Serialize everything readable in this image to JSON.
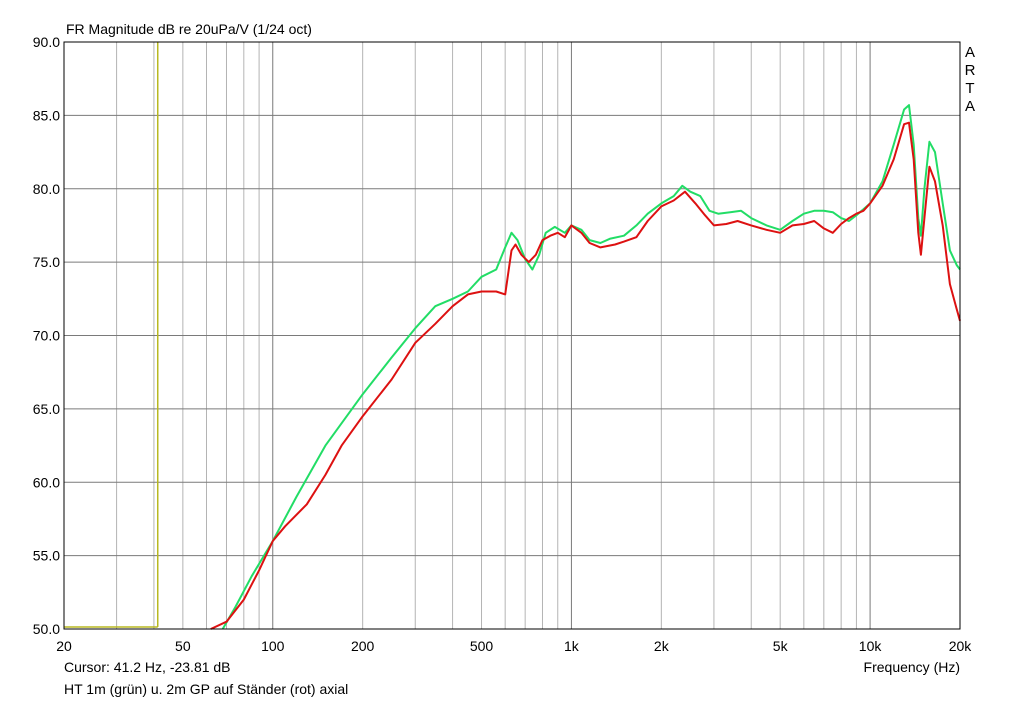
{
  "chart_data": {
    "type": "line",
    "title": "FR Magnitude dB re 20uPa/V (1/24 oct)",
    "xlabel": "Frequency (Hz)",
    "ylabel": "",
    "x_scale": "log",
    "xlim": [
      20,
      20000
    ],
    "ylim": [
      50,
      90
    ],
    "grid": true,
    "x_tick_labels": [
      {
        "value": 20,
        "label": "20"
      },
      {
        "value": 50,
        "label": "50"
      },
      {
        "value": 100,
        "label": "100"
      },
      {
        "value": 200,
        "label": "200"
      },
      {
        "value": 500,
        "label": "500"
      },
      {
        "value": 1000,
        "label": "1k"
      },
      {
        "value": 2000,
        "label": "2k"
      },
      {
        "value": 5000,
        "label": "5k"
      },
      {
        "value": 10000,
        "label": "10k"
      },
      {
        "value": 20000,
        "label": "20k"
      }
    ],
    "y_ticks": [
      "50.0",
      "55.0",
      "60.0",
      "65.0",
      "70.0",
      "75.0",
      "80.0",
      "85.0",
      "90.0"
    ],
    "cursor_frequency_hz": 41.2,
    "cursor_color": "#b8b820",
    "cursor_readout": "Cursor: 41.2 Hz, -23.81 dB",
    "caption": "HT 1m (grün) u. 2m GP auf Ständer (rot) axial",
    "watermark": "ARTA",
    "series": [
      {
        "color": "#22dd66",
        "points": [
          [
            68,
            50.0
          ],
          [
            75,
            51.5
          ],
          [
            85,
            53.6
          ],
          [
            100,
            56.0
          ],
          [
            120,
            59.0
          ],
          [
            150,
            62.5
          ],
          [
            200,
            66.0
          ],
          [
            250,
            68.5
          ],
          [
            300,
            70.5
          ],
          [
            350,
            72.0
          ],
          [
            400,
            72.5
          ],
          [
            450,
            73.0
          ],
          [
            500,
            74.0
          ],
          [
            560,
            74.5
          ],
          [
            600,
            76.0
          ],
          [
            630,
            77.0
          ],
          [
            660,
            76.5
          ],
          [
            700,
            75.2
          ],
          [
            740,
            74.5
          ],
          [
            780,
            75.5
          ],
          [
            820,
            77.0
          ],
          [
            880,
            77.4
          ],
          [
            950,
            77.0
          ],
          [
            1000,
            77.5
          ],
          [
            1080,
            77.2
          ],
          [
            1150,
            76.5
          ],
          [
            1250,
            76.3
          ],
          [
            1350,
            76.6
          ],
          [
            1500,
            76.8
          ],
          [
            1650,
            77.5
          ],
          [
            1800,
            78.3
          ],
          [
            2000,
            79.0
          ],
          [
            2200,
            79.5
          ],
          [
            2350,
            80.2
          ],
          [
            2500,
            79.8
          ],
          [
            2700,
            79.5
          ],
          [
            2900,
            78.5
          ],
          [
            3100,
            78.3
          ],
          [
            3400,
            78.4
          ],
          [
            3700,
            78.5
          ],
          [
            4000,
            78.0
          ],
          [
            4500,
            77.5
          ],
          [
            5000,
            77.2
          ],
          [
            5500,
            77.8
          ],
          [
            6000,
            78.3
          ],
          [
            6500,
            78.5
          ],
          [
            7000,
            78.5
          ],
          [
            7500,
            78.4
          ],
          [
            8000,
            78.0
          ],
          [
            8500,
            77.8
          ],
          [
            9000,
            78.2
          ],
          [
            9500,
            78.6
          ],
          [
            10000,
            79.0
          ],
          [
            11000,
            80.5
          ],
          [
            12000,
            83.0
          ],
          [
            13000,
            85.4
          ],
          [
            13500,
            85.7
          ],
          [
            14000,
            83.0
          ],
          [
            14500,
            78.0
          ],
          [
            14800,
            76.8
          ],
          [
            15200,
            80.0
          ],
          [
            15800,
            83.2
          ],
          [
            16500,
            82.5
          ],
          [
            17500,
            79.0
          ],
          [
            18500,
            75.8
          ],
          [
            19500,
            74.8
          ],
          [
            20000,
            74.5
          ]
        ]
      },
      {
        "color": "#dd1111",
        "points": [
          [
            62,
            50.0
          ],
          [
            70,
            50.5
          ],
          [
            80,
            52.0
          ],
          [
            90,
            54.0
          ],
          [
            100,
            56.0
          ],
          [
            110,
            57.0
          ],
          [
            130,
            58.5
          ],
          [
            150,
            60.5
          ],
          [
            170,
            62.5
          ],
          [
            200,
            64.5
          ],
          [
            250,
            67.0
          ],
          [
            300,
            69.5
          ],
          [
            350,
            70.8
          ],
          [
            400,
            72.0
          ],
          [
            450,
            72.8
          ],
          [
            500,
            73.0
          ],
          [
            560,
            73.0
          ],
          [
            600,
            72.8
          ],
          [
            630,
            75.8
          ],
          [
            650,
            76.2
          ],
          [
            680,
            75.5
          ],
          [
            720,
            75.0
          ],
          [
            760,
            75.5
          ],
          [
            800,
            76.5
          ],
          [
            850,
            76.8
          ],
          [
            900,
            77.0
          ],
          [
            950,
            76.7
          ],
          [
            1000,
            77.5
          ],
          [
            1080,
            77.0
          ],
          [
            1150,
            76.3
          ],
          [
            1250,
            76.0
          ],
          [
            1400,
            76.2
          ],
          [
            1500,
            76.4
          ],
          [
            1650,
            76.7
          ],
          [
            1800,
            77.8
          ],
          [
            2000,
            78.8
          ],
          [
            2200,
            79.2
          ],
          [
            2400,
            79.8
          ],
          [
            2600,
            79.0
          ],
          [
            2800,
            78.2
          ],
          [
            3000,
            77.5
          ],
          [
            3300,
            77.6
          ],
          [
            3600,
            77.8
          ],
          [
            4000,
            77.5
          ],
          [
            4500,
            77.2
          ],
          [
            5000,
            77.0
          ],
          [
            5500,
            77.5
          ],
          [
            6000,
            77.6
          ],
          [
            6500,
            77.8
          ],
          [
            7000,
            77.3
          ],
          [
            7500,
            77.0
          ],
          [
            8000,
            77.6
          ],
          [
            8500,
            78.0
          ],
          [
            9000,
            78.3
          ],
          [
            9500,
            78.5
          ],
          [
            10000,
            79.0
          ],
          [
            11000,
            80.2
          ],
          [
            12000,
            82.0
          ],
          [
            13000,
            84.4
          ],
          [
            13500,
            84.5
          ],
          [
            14000,
            82.0
          ],
          [
            14500,
            77.0
          ],
          [
            14800,
            75.5
          ],
          [
            15200,
            78.0
          ],
          [
            15800,
            81.5
          ],
          [
            16500,
            80.5
          ],
          [
            17500,
            77.5
          ],
          [
            18500,
            73.5
          ],
          [
            19500,
            71.8
          ],
          [
            20000,
            71.0
          ]
        ]
      }
    ]
  }
}
